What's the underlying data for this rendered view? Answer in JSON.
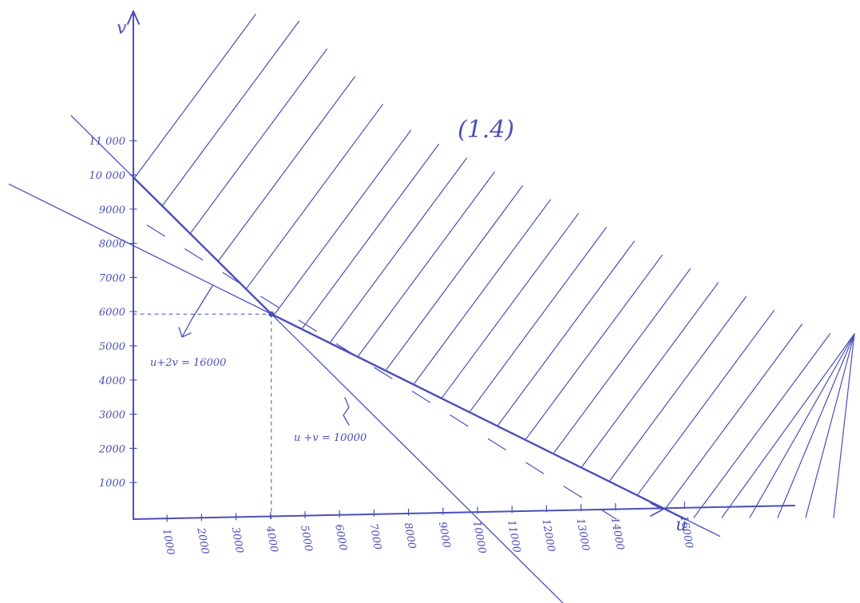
{
  "figure": {
    "figure_label": "(1.4)",
    "x_axis_label": "u",
    "y_axis_label": "v",
    "ink_color": "#4a4fb8",
    "background": "#ffffff"
  },
  "constraints": [
    {
      "label": "u+2v = 16000",
      "a": 1,
      "b": 2,
      "c": 16000
    },
    {
      "label": "u +v = 10000",
      "a": 1,
      "b": 1,
      "c": 10000
    }
  ],
  "intersection": {
    "u": 4000,
    "v": 6000
  },
  "chart_data": {
    "type": "line",
    "xlabel": "u",
    "ylabel": "v",
    "x_ticks": [
      "1000",
      "2000",
      "3000",
      "4000",
      "5000",
      "6000",
      "7000",
      "8000",
      "9000",
      "10000",
      "11000",
      "12000",
      "13000",
      "14000",
      "16000"
    ],
    "y_ticks": [
      "1000",
      "2000",
      "3000",
      "4000",
      "5000",
      "6000",
      "7000",
      "8000",
      "9000",
      "10 000",
      "11 000"
    ],
    "xlim": [
      0,
      19000
    ],
    "ylim": [
      0,
      14000
    ],
    "feasible_region_boundary": [
      [
        0,
        10000
      ],
      [
        4000,
        6000
      ],
      [
        16000,
        0
      ]
    ],
    "series": [
      {
        "name": "u +v = 10000",
        "points": [
          [
            0,
            10000
          ],
          [
            10000,
            0
          ]
        ]
      },
      {
        "name": "u+2v = 16000",
        "points": [
          [
            0,
            8000
          ],
          [
            16000,
            0
          ]
        ]
      }
    ],
    "title": "(1.4)"
  }
}
